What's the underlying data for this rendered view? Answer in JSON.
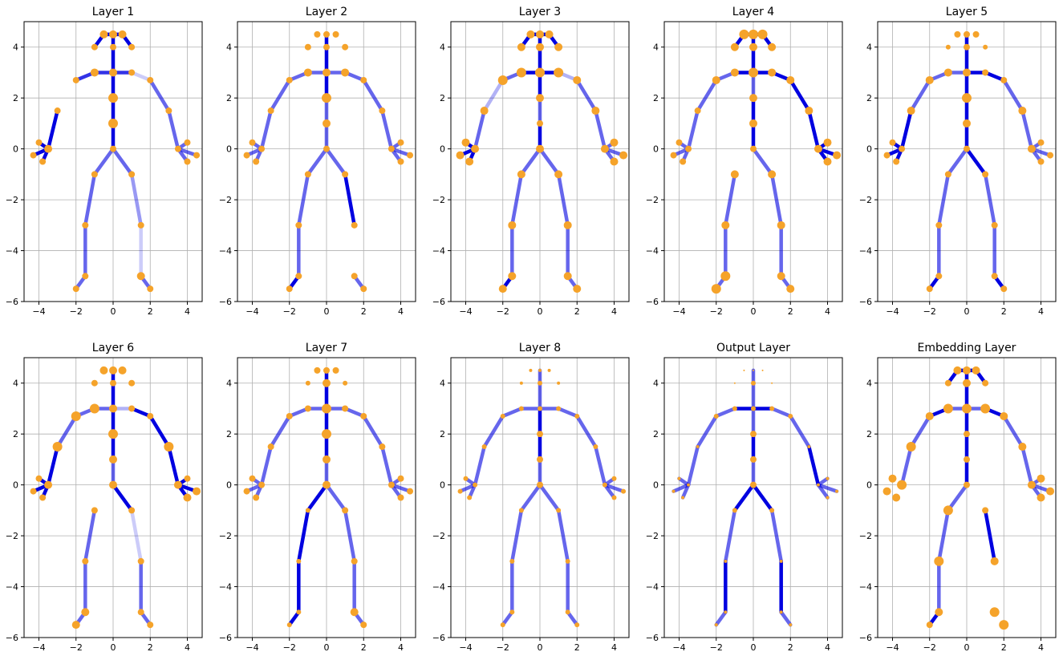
{
  "chart_data": {
    "type": "scatter",
    "xlim": [
      -4.8,
      4.8
    ],
    "ylim": [
      -6,
      5
    ],
    "xticks": [
      -4,
      -2,
      0,
      2,
      4
    ],
    "yticks": [
      -6,
      -4,
      -2,
      0,
      2,
      4
    ],
    "grid": true,
    "colors": {
      "bone": "#0000e0",
      "joint": "#f5a32a",
      "axis": "#000000",
      "grid": "#b0b0b0"
    },
    "joints": [
      [
        0,
        0
      ],
      [
        0,
        1
      ],
      [
        0,
        2
      ],
      [
        0,
        3
      ],
      [
        0,
        4
      ],
      [
        0,
        4.5
      ],
      [
        -0.5,
        4.5
      ],
      [
        0.5,
        4.5
      ],
      [
        -1,
        4
      ],
      [
        1,
        4
      ],
      [
        -1,
        3
      ],
      [
        -2,
        2.7
      ],
      [
        -3,
        1.5
      ],
      [
        -3.5,
        0
      ],
      [
        -4,
        0.25
      ],
      [
        -4.3,
        -0.25
      ],
      [
        -3.8,
        -0.5
      ],
      [
        1,
        3
      ],
      [
        2,
        2.7
      ],
      [
        3,
        1.5
      ],
      [
        3.5,
        0
      ],
      [
        4,
        0.25
      ],
      [
        4.5,
        -0.25
      ],
      [
        4,
        -0.5
      ],
      [
        -1,
        -1
      ],
      [
        -1.5,
        -3
      ],
      [
        -1.5,
        -5
      ],
      [
        -2,
        -5.5
      ],
      [
        1,
        -1
      ],
      [
        1.5,
        -3
      ],
      [
        1.5,
        -5
      ],
      [
        2,
        -5.5
      ]
    ],
    "bones": [
      [
        0,
        1
      ],
      [
        1,
        2
      ],
      [
        2,
        3
      ],
      [
        3,
        4
      ],
      [
        4,
        5
      ],
      [
        5,
        6
      ],
      [
        5,
        7
      ],
      [
        6,
        8
      ],
      [
        7,
        9
      ],
      [
        3,
        10
      ],
      [
        10,
        11
      ],
      [
        11,
        12
      ],
      [
        12,
        13
      ],
      [
        13,
        14
      ],
      [
        13,
        15
      ],
      [
        13,
        16
      ],
      [
        3,
        17
      ],
      [
        17,
        18
      ],
      [
        18,
        19
      ],
      [
        19,
        20
      ],
      [
        20,
        21
      ],
      [
        20,
        22
      ],
      [
        20,
        23
      ],
      [
        0,
        24
      ],
      [
        24,
        25
      ],
      [
        25,
        26
      ],
      [
        26,
        27
      ],
      [
        0,
        28
      ],
      [
        28,
        29
      ],
      [
        29,
        30
      ],
      [
        30,
        31
      ]
    ],
    "panels": [
      {
        "title": "Layer 1",
        "bone_opacity": [
          1,
          1,
          1,
          1,
          1,
          1,
          1,
          1,
          1,
          0.8,
          0.8,
          0,
          1,
          1,
          1,
          1,
          0.8,
          0.2,
          0.6,
          0.6,
          0.6,
          0.6,
          0.6,
          0.6,
          0.6,
          0.6,
          0.6,
          0.6,
          0.4,
          0.2,
          0.6
        ],
        "joint_size": [
          4,
          6,
          6,
          5,
          4,
          5,
          5,
          5,
          4,
          4,
          5,
          4,
          4,
          5,
          4,
          4,
          4,
          4,
          4,
          4,
          4,
          4,
          4,
          4,
          4,
          4,
          4,
          4,
          4,
          4,
          5,
          4
        ]
      },
      {
        "title": "Layer 2",
        "bone_opacity": [
          0.6,
          0.6,
          1,
          1,
          1,
          0,
          0,
          0,
          0,
          0.6,
          0.6,
          0.6,
          0.6,
          0.6,
          0.6,
          0.6,
          0.6,
          0.6,
          0.6,
          0.6,
          0.6,
          0.6,
          0.6,
          0.6,
          0.6,
          0.6,
          1,
          0.6,
          1,
          0,
          0.6
        ],
        "joint_size": [
          4,
          5,
          6,
          5,
          4,
          4,
          4,
          4,
          4,
          4,
          5,
          4,
          4,
          4,
          4,
          4,
          4,
          5,
          4,
          4,
          4,
          4,
          4,
          4,
          4,
          4,
          4,
          4,
          4,
          4,
          4,
          4
        ]
      },
      {
        "title": "Layer 3",
        "bone_opacity": [
          1,
          0.6,
          1,
          1,
          1,
          1,
          1,
          1,
          1,
          1,
          0.6,
          0.3,
          0.6,
          1,
          1,
          1,
          1,
          0.3,
          0.6,
          0.6,
          0.6,
          0.6,
          0.6,
          0.6,
          0.6,
          0.6,
          1,
          0.6,
          0.6,
          0.6,
          0.6
        ],
        "joint_size": [
          5,
          4,
          5,
          6,
          5,
          5,
          5,
          5,
          5,
          5,
          6,
          6,
          5,
          5,
          5,
          5,
          5,
          6,
          5,
          5,
          5,
          5,
          5,
          5,
          5,
          5,
          5,
          5,
          5,
          5,
          5,
          5
        ]
      },
      {
        "title": "Layer 4",
        "bone_opacity": [
          1,
          1,
          0.6,
          1,
          1,
          1,
          1,
          1,
          1,
          1,
          0.6,
          0.6,
          0.6,
          0.6,
          0.6,
          0.6,
          1,
          1,
          1,
          1,
          1,
          1,
          1,
          0,
          0.6,
          0.6,
          0.6,
          0.6,
          0.6,
          0.6,
          0.6
        ],
        "joint_size": [
          4,
          5,
          5,
          6,
          5,
          6,
          6,
          6,
          5,
          5,
          5,
          5,
          4,
          4,
          4,
          4,
          4,
          5,
          5,
          5,
          5,
          5,
          5,
          5,
          5,
          5,
          6,
          6,
          5,
          5,
          5,
          5
        ]
      },
      {
        "title": "Layer 5",
        "bone_opacity": [
          1,
          1,
          1,
          1,
          1,
          0,
          0,
          0,
          0,
          0.6,
          0.6,
          0.6,
          1,
          1,
          1,
          1,
          1,
          1,
          0.6,
          0.6,
          0.6,
          0.6,
          0.6,
          0.6,
          0.6,
          0.6,
          1,
          1,
          0.6,
          0.6,
          1
        ],
        "joint_size": [
          4,
          5,
          6,
          5,
          4,
          4,
          4,
          4,
          3,
          3,
          5,
          5,
          5,
          4,
          4,
          4,
          4,
          4,
          4,
          5,
          5,
          4,
          4,
          4,
          4,
          4,
          4,
          4,
          4,
          4,
          4,
          4
        ]
      },
      {
        "title": "Layer 6",
        "bone_opacity": [
          0.6,
          1,
          1,
          1,
          1,
          0,
          0,
          0,
          0,
          0.6,
          0.6,
          0.6,
          1,
          1,
          1,
          1,
          0.3,
          1,
          1,
          1,
          1,
          1,
          1,
          0,
          0.6,
          0.6,
          0.6,
          1,
          0.2,
          0.6,
          0.6
        ],
        "joint_size": [
          5,
          5,
          6,
          5,
          4,
          5,
          5,
          5,
          4,
          4,
          6,
          6,
          6,
          5,
          4,
          4,
          4,
          4,
          4,
          6,
          5,
          4,
          5,
          5,
          4,
          4,
          5,
          5,
          4,
          4,
          4,
          4
        ]
      },
      {
        "title": "Layer 7",
        "bone_opacity": [
          0.6,
          1,
          1,
          1,
          1,
          0,
          0,
          0,
          0,
          0.6,
          0.6,
          0.6,
          0.6,
          0.6,
          0.6,
          0.6,
          0.6,
          0.6,
          0.6,
          0.6,
          0.6,
          0.6,
          0.6,
          1,
          1,
          1,
          1,
          0.6,
          0.6,
          0.6,
          0.6
        ],
        "joint_size": [
          5,
          5,
          6,
          6,
          5,
          4,
          4,
          4,
          3,
          3,
          4,
          4,
          4,
          4,
          4,
          4,
          4,
          4,
          4,
          4,
          4,
          4,
          4,
          4,
          3,
          3,
          3,
          3,
          4,
          4,
          5,
          4
        ]
      },
      {
        "title": "Layer 8",
        "bone_opacity": [
          0.6,
          1,
          1,
          0.6,
          0.6,
          0,
          0,
          0,
          0,
          0.6,
          0.6,
          0.6,
          0.6,
          0.6,
          0.6,
          0.6,
          0.6,
          0.6,
          0.6,
          0.6,
          0.6,
          0.6,
          0.6,
          0.6,
          0.6,
          0.6,
          0.6,
          0.6,
          0.6,
          0.6,
          0.6
        ],
        "joint_size": [
          4,
          4,
          4,
          3,
          3,
          2,
          2,
          2,
          2,
          2,
          3,
          3,
          3,
          3,
          3,
          3,
          3,
          3,
          3,
          3,
          3,
          3,
          3,
          3,
          3,
          3,
          3,
          3,
          3,
          3,
          3,
          3
        ]
      },
      {
        "title": "Output Layer",
        "bone_opacity": [
          0.6,
          1,
          0.6,
          0.6,
          0.6,
          0,
          0,
          0,
          0,
          1,
          0.6,
          0.6,
          0.6,
          0.6,
          0.6,
          0.6,
          1,
          0.6,
          0.6,
          1,
          0.6,
          0.6,
          0.6,
          1,
          0.6,
          1,
          0.6,
          1,
          0.6,
          1,
          0.6
        ],
        "joint_size": [
          4,
          4,
          4,
          3,
          3,
          1,
          1,
          1,
          1,
          1,
          3,
          3,
          2,
          2,
          2,
          2,
          2,
          3,
          3,
          2,
          2,
          2,
          2,
          2,
          3,
          2,
          2,
          2,
          3,
          2,
          2,
          2
        ]
      },
      {
        "title": "Embedding Layer",
        "bone_opacity": [
          1,
          1,
          1,
          1,
          1,
          1,
          1,
          1,
          1,
          0.6,
          1,
          0.6,
          0.6,
          0,
          0,
          0,
          0.6,
          1,
          0.6,
          0.6,
          0.6,
          0.6,
          0.6,
          0.6,
          0.6,
          0.6,
          1,
          0,
          1,
          0,
          0
        ],
        "joint_size": [
          4,
          4,
          4,
          6,
          5,
          5,
          5,
          5,
          4,
          4,
          6,
          5,
          6,
          6,
          5,
          5,
          5,
          6,
          5,
          5,
          5,
          5,
          5,
          5,
          6,
          6,
          5,
          4,
          4,
          5,
          6,
          6
        ]
      }
    ]
  }
}
